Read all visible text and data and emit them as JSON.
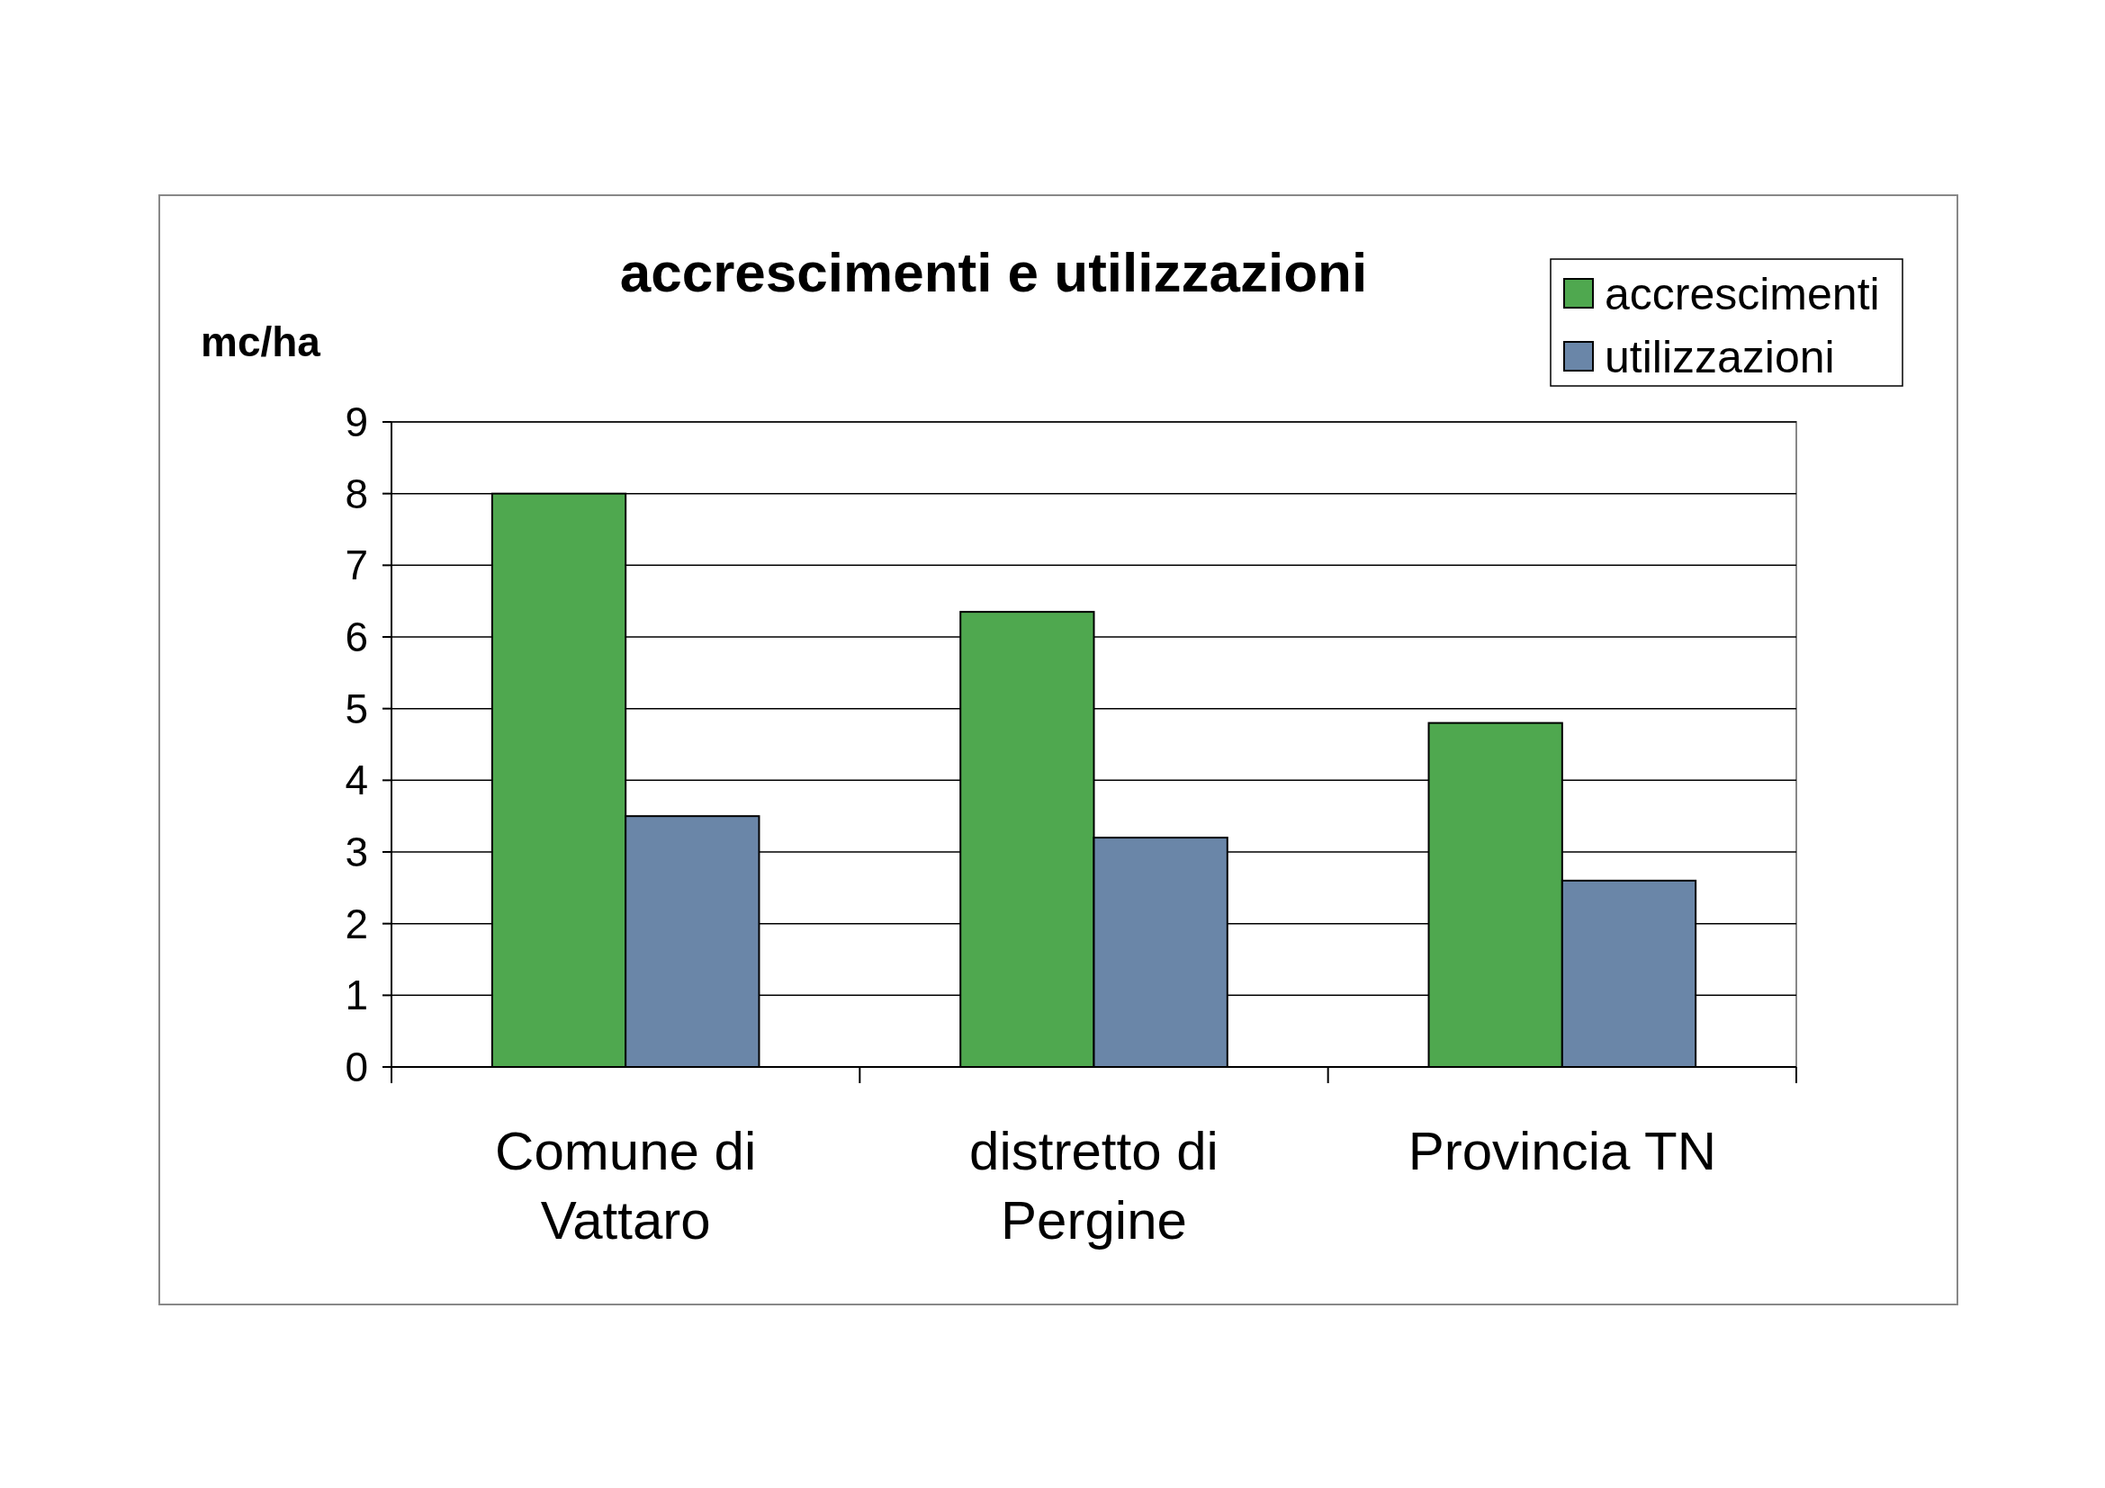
{
  "chart_data": {
    "type": "bar",
    "title": "accrescimenti e utilizzazioni",
    "ylabel": "mc/ha",
    "categories": [
      "Comune di Vattaro",
      "distretto di Pergine",
      "Provincia TN"
    ],
    "series": [
      {
        "name": "accrescimenti",
        "color": "#4fa84f",
        "values": [
          8.0,
          6.35,
          4.8
        ]
      },
      {
        "name": "utilizzazioni",
        "color": "#6a86a8",
        "values": [
          3.5,
          3.2,
          2.6
        ]
      }
    ],
    "ylim": [
      0,
      9
    ],
    "yticks": [
      0,
      1,
      2,
      3,
      4,
      5,
      6,
      7,
      8,
      9
    ],
    "grid": "y",
    "legend": "top right"
  }
}
